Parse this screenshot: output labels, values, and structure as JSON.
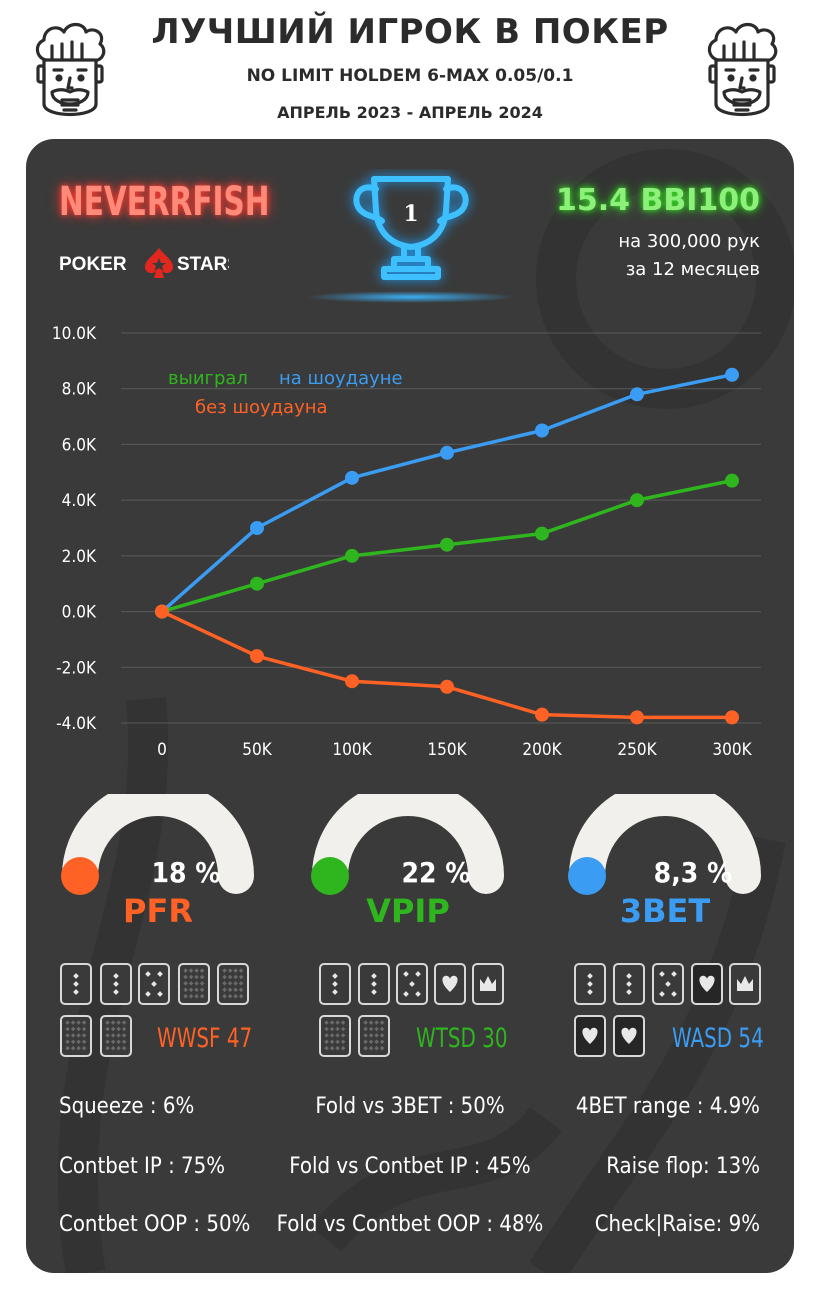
{
  "header": {
    "title": "ЛУЧШИЙ ИГРОК В ПОКЕР",
    "subtitle": "NO LIMIT HOLDEM 6-MAX 0.05/0.1",
    "date_range": "АПРЕЛЬ 2023 - АПРЕЛЬ 2024"
  },
  "player": {
    "name": "NEVERRFISH",
    "room_logo_left": "POKER",
    "room_logo_right": "STARS",
    "trophy_rank": "1",
    "winrate": "15.4 BBI100",
    "hands": "на 300,000 рук",
    "period": "за  12 месяцев"
  },
  "colors": {
    "orange": "#ff6224",
    "green": "#2fb51e",
    "blue": "#3a9cf2",
    "panel": "#3a3a3a",
    "gauge_track": "#f2f0ec"
  },
  "icons": {
    "chef": "chef-king-icon",
    "trophy": "trophy-icon",
    "spade": "spade-star-icon",
    "cards": "playing-card-icon"
  },
  "chart_data": {
    "type": "line",
    "title": "",
    "xlabel": "",
    "ylabel": "",
    "x": [
      "0",
      "50K",
      "100K",
      "150K",
      "200K",
      "250K",
      "300K"
    ],
    "y_ticks": [
      "10.0K",
      "8.0K",
      "6.0K",
      "4.0K",
      "2.0K",
      "0.0K",
      "-2.0K",
      "-4.0K"
    ],
    "ylim": [
      -4000,
      10000
    ],
    "grid": true,
    "legend_placement": "top-left",
    "series": [
      {
        "name": "на шоудауне",
        "color": "#3a9cf2",
        "values": [
          0,
          3000,
          4800,
          5700,
          6500,
          7800,
          8500
        ]
      },
      {
        "name": "выиграл",
        "color": "#2fb51e",
        "values": [
          0,
          1000,
          2000,
          2400,
          2800,
          4000,
          4700
        ]
      },
      {
        "name": "без шоудауна",
        "color": "#ff6224",
        "values": [
          0,
          -1600,
          -2500,
          -2700,
          -3700,
          -3800,
          -3800
        ]
      }
    ]
  },
  "gauges": [
    {
      "value": "18 %",
      "label": "PFR",
      "fraction": 0.0,
      "color": "#ff6224"
    },
    {
      "value": "22 %",
      "label": "VPIP",
      "fraction": 0.0,
      "color": "#2fb51e"
    },
    {
      "value": "8,3 %",
      "label": "3BET",
      "fraction": 0.0,
      "color": "#3a9cf2"
    }
  ],
  "card_stats": [
    {
      "label": "WWSF 47",
      "color": "#ff6224"
    },
    {
      "label": "WTSD 30",
      "color": "#2fb51e"
    },
    {
      "label": "WASD 54",
      "color": "#3a9cf2"
    }
  ],
  "stats": {
    "left": [
      "Squeeze : 6%",
      "Contbet IP : 75%",
      "Contbet OOP : 50%"
    ],
    "middle": [
      "Fold vs 3BET : 50%",
      "Fold vs Contbet IP : 45%",
      "Fold vs Contbet OOP : 48%"
    ],
    "right": [
      "4BET range : 4.9%",
      "Raise flop: 13%",
      "Check|Raise: 9%"
    ]
  }
}
